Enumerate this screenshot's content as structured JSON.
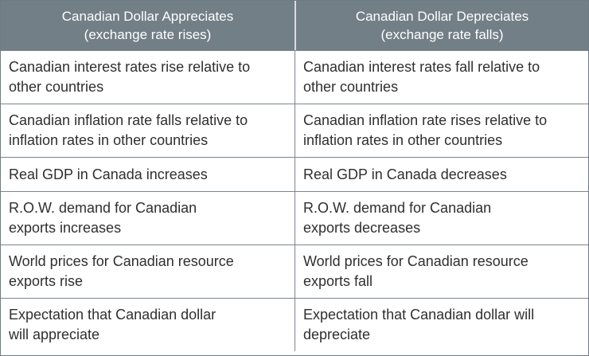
{
  "table": {
    "headers": [
      "Canadian Dollar Appreciates\n(exchange rate rises)",
      "Canadian Dollar Depreciates\n(exchange rate falls)"
    ],
    "rows": [
      [
        "Canadian interest rates rise relative to\nother countries",
        "Canadian interest rates fall relative to\nother countries"
      ],
      [
        "Canadian inflation rate falls relative to\ninflation rates in other countries",
        "Canadian inflation rate rises relative to\ninflation rates in other countries"
      ],
      [
        "Real GDP in Canada increases",
        "Real GDP in Canada decreases"
      ],
      [
        "R.O.W. demand for Canadian\nexports increases",
        "R.O.W. demand for Canadian\nexports decreases"
      ],
      [
        "World prices for Canadian resource\nexports rise",
        "World prices for Canadian resource\nexports fall"
      ],
      [
        "Expectation that Canadian dollar\nwill appreciate",
        "Expectation that Canadian dollar will\ndepreciate"
      ]
    ]
  },
  "colors": {
    "header_background": "#727f87",
    "header_text": "#ffffff",
    "body_text": "#2f2f2f",
    "grid_lines": "#7b868d"
  }
}
